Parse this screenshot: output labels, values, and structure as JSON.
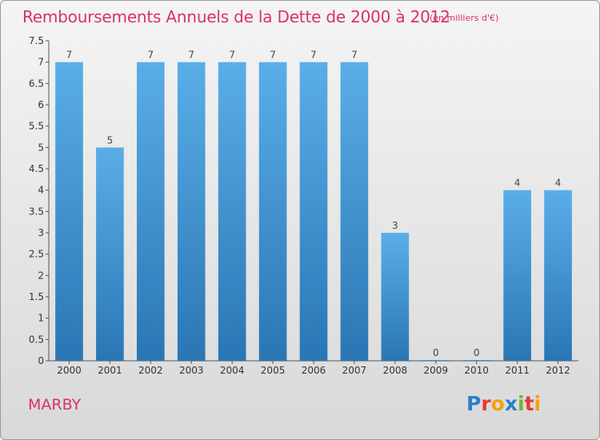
{
  "title": "Remboursements Annuels de la Dette de 2000 à 2012",
  "subtitle": "(en milliers d'€)",
  "town": "MARBY",
  "logo": {
    "text": "Proxiti",
    "colors": [
      "#2a7fc9",
      "#e63a2f",
      "#f3a10d",
      "#2a7fc9",
      "#6cb42c",
      "#e63a2f",
      "#f3a10d"
    ]
  },
  "colors": {
    "title": "#d9306e",
    "bar_top": "#5aaee8",
    "bar_bottom": "#2a76b4",
    "background_top": "#f4f4f4",
    "background_bottom": "#d9d9d9"
  },
  "chart_data": {
    "type": "bar",
    "categories": [
      "2000",
      "2001",
      "2002",
      "2003",
      "2004",
      "2005",
      "2006",
      "2007",
      "2008",
      "2009",
      "2010",
      "2011",
      "2012"
    ],
    "values": [
      7,
      5,
      7,
      7,
      7,
      7,
      7,
      7,
      3,
      0,
      0,
      4,
      4
    ],
    "value_labels": [
      "7",
      "5",
      "7",
      "7",
      "7",
      "7",
      "7",
      "7",
      "3",
      "0",
      "0",
      "4",
      "4"
    ],
    "ylim": [
      0,
      7.5
    ],
    "yticks": [
      0,
      0.5,
      1,
      1.5,
      2,
      2.5,
      3,
      3.5,
      4,
      4.5,
      5,
      5.5,
      6,
      6.5,
      7,
      7.5
    ],
    "ytick_labels": [
      "0",
      "0.5",
      "1",
      "1.5",
      "2",
      "2.5",
      "3",
      "3.5",
      "4",
      "4.5",
      "5",
      "5.5",
      "6",
      "6.5",
      "7",
      "7.5"
    ],
    "grid": false,
    "xlabel": "",
    "ylabel": ""
  }
}
